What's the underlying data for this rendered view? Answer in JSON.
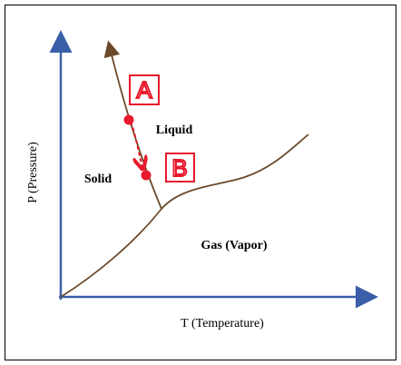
{
  "title": null,
  "axes": {
    "x_label": "T (Temperature)",
    "y_label": "P (Pressure)"
  },
  "regions": {
    "solid": "Solid",
    "liquid": "Liquid",
    "gas": "Gas (Vapor)"
  },
  "annotations": {
    "a": "A",
    "b": "B"
  }
}
